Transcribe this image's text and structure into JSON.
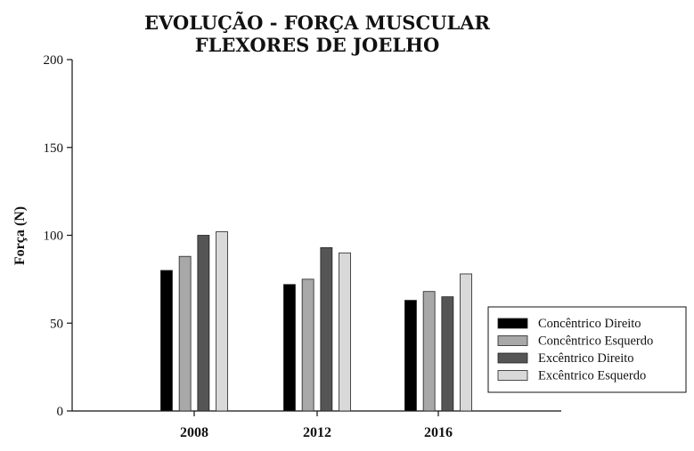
{
  "chart_data": {
    "type": "bar",
    "title": [
      "EVOLUÇÃO - FORÇA MUSCULAR",
      "FLEXORES DE JOELHO"
    ],
    "xlabel": "",
    "ylabel": "Força (N)",
    "ylim": [
      0,
      200
    ],
    "yticks": [
      0,
      50,
      100,
      150,
      200
    ],
    "categories": [
      "2008",
      "2012",
      "2016"
    ],
    "series": [
      {
        "name": "Concêntrico Direito",
        "values": [
          80,
          72,
          63
        ],
        "color": "#000000"
      },
      {
        "name": "Concêntrico Esquerdo",
        "values": [
          88,
          75,
          68
        ],
        "color": "#a8a8a8"
      },
      {
        "name": "Excêntrico Direito",
        "values": [
          100,
          93,
          65
        ],
        "color": "#555555"
      },
      {
        "name": "Excêntrico Esquerdo",
        "values": [
          102,
          90,
          78
        ],
        "color": "#d9d9d9"
      }
    ],
    "grid": false,
    "legend": "right"
  }
}
